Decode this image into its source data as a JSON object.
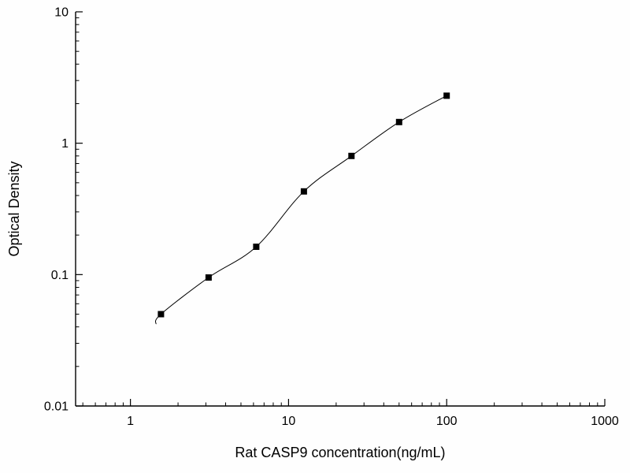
{
  "chart_data": {
    "type": "scatter",
    "title": "",
    "xlabel": "Rat CASP9 concentration(ng/mL)",
    "ylabel": "Optical Density",
    "x_scale": "log",
    "y_scale": "log",
    "xlim": [
      0.45,
      1000
    ],
    "ylim": [
      0.01,
      10
    ],
    "x_major_ticks": [
      1,
      10,
      100,
      1000
    ],
    "x_tick_labels": [
      "1",
      "10",
      "100",
      "1000"
    ],
    "y_major_ticks": [
      0.01,
      0.1,
      1,
      10
    ],
    "y_tick_labels": [
      "0.01",
      "0.1",
      "1",
      "10"
    ],
    "grid": false,
    "legend": false,
    "series": [
      {
        "name": "standard-curve-points",
        "marker": "square",
        "marker_size": 8,
        "color": "#000000",
        "x": [
          1.56,
          3.12,
          6.25,
          12.5,
          25,
          50,
          100
        ],
        "y": [
          0.05,
          0.095,
          0.163,
          0.43,
          0.8,
          1.45,
          2.3
        ]
      }
    ],
    "fit_line": {
      "present": true,
      "color": "#000000",
      "width": 1,
      "lead_in_point": {
        "x": 1.45,
        "y": 0.042
      }
    }
  },
  "colors": {
    "background": "#fefefe",
    "axis": "#000000",
    "marker": "#000000"
  }
}
